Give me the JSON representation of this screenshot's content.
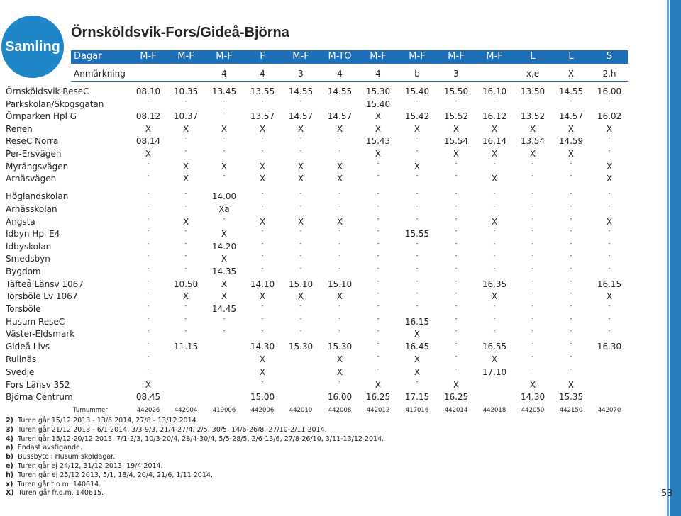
{
  "badge": "Samling",
  "title": "Örnsköldsvik-Fors/Gideå-Björna",
  "page_number": "53",
  "header": {
    "dagar_label": "Dagar",
    "days": [
      "M-F",
      "M-F",
      "M-F",
      "F",
      "M-F",
      "M-TO",
      "M-F",
      "M-F",
      "M-F",
      "M-F",
      "L",
      "L",
      "S"
    ],
    "anm_label": "Anmärkning",
    "remarks": [
      "",
      "",
      "4",
      "4",
      "3",
      "4",
      "4",
      "b",
      "3",
      "",
      "x,e",
      "X",
      "2,h"
    ]
  },
  "stops": [
    {
      "name": "Örnsköldsvik ReseC",
      "v": [
        "08.10",
        "10.35",
        "13.45",
        "13.55",
        "14.55",
        "14.55",
        "15.30",
        "15.40",
        "15.50",
        "16.10",
        "13.50",
        "14.55",
        "16.00"
      ]
    },
    {
      "name": "Parkskolan/Skogsgatan",
      "v": [
        "-",
        "-",
        "-",
        "-",
        "-",
        "-",
        "15.40",
        "-",
        "-",
        "-",
        "-",
        "-",
        "-"
      ]
    },
    {
      "name": "Örnparken Hpl G",
      "v": [
        "08.12",
        "10.37",
        "-",
        "13.57",
        "14.57",
        "14.57",
        "X",
        "15.42",
        "15.52",
        "16.12",
        "13.52",
        "14.57",
        "16.02"
      ]
    },
    {
      "name": "Renen",
      "v": [
        "X",
        "X",
        "X",
        "X",
        "X",
        "X",
        "X",
        "X",
        "X",
        "X",
        "X",
        "X",
        "X"
      ]
    },
    {
      "name": "ReseC Norra",
      "v": [
        "08.14",
        "-",
        "-",
        "-",
        "-",
        "-",
        "15.43",
        "-",
        "15.54",
        "16.14",
        "13.54",
        "14.59",
        "-"
      ]
    },
    {
      "name": "Per-Ersvägen",
      "v": [
        "X",
        "-",
        "-",
        "-",
        "-",
        "-",
        "X",
        "-",
        "X",
        "X",
        "X",
        "X",
        "-"
      ]
    },
    {
      "name": "Myrängsvägen",
      "v": [
        "-",
        "X",
        "X",
        "X",
        "X",
        "X",
        "-",
        "X",
        "-",
        "-",
        "-",
        "-",
        "X"
      ]
    },
    {
      "name": "Arnäsvägen",
      "v": [
        "-",
        "X",
        "-",
        "X",
        "X",
        "X",
        "-",
        "-",
        "-",
        "X",
        "-",
        "-",
        "X"
      ]
    },
    {
      "name": "Höglandskolan",
      "v": [
        "-",
        "-",
        "14.00",
        "-",
        "-",
        "-",
        "-",
        "-",
        "-",
        "-",
        "-",
        "-",
        "-"
      ]
    },
    {
      "name": "Arnässkolan",
      "v": [
        "-",
        "-",
        "Xa",
        "-",
        "-",
        "-",
        "-",
        "-",
        "-",
        "-",
        "-",
        "-",
        "-"
      ]
    },
    {
      "name": "Angsta",
      "v": [
        "-",
        "X",
        "-",
        "X",
        "X",
        "X",
        "-",
        "-",
        "-",
        "X",
        "-",
        "-",
        "X"
      ]
    },
    {
      "name": "Idbyn Hpl E4",
      "v": [
        "-",
        "-",
        "X",
        "-",
        "-",
        "-",
        "-",
        "15.55",
        "-",
        "-",
        "-",
        "-",
        "-"
      ]
    },
    {
      "name": "Idbyskolan",
      "v": [
        "-",
        "-",
        "14.20",
        "-",
        "-",
        "-",
        "-",
        "-",
        "-",
        "-",
        "-",
        "-",
        "-"
      ]
    },
    {
      "name": "Smedsbyn",
      "v": [
        "-",
        "-",
        "X",
        "-",
        "-",
        "-",
        "-",
        "-",
        "-",
        "-",
        "-",
        "-",
        "-"
      ]
    },
    {
      "name": "Bygdom",
      "v": [
        "-",
        "-",
        "14.35",
        "-",
        "-",
        "-",
        "-",
        "-",
        "-",
        "-",
        "-",
        "-",
        "-"
      ]
    },
    {
      "name": "Täfteå Länsv 1067",
      "v": [
        "-",
        "10.50",
        "X",
        "14.10",
        "15.10",
        "15.10",
        "-",
        "-",
        "-",
        "16.35",
        "-",
        "-",
        "16.15"
      ]
    },
    {
      "name": "Torsböle Lv 1067",
      "v": [
        "-",
        "X",
        "X",
        "X",
        "X",
        "X",
        "-",
        "-",
        "-",
        "X",
        "-",
        "-",
        "X"
      ]
    },
    {
      "name": "Torsböle",
      "v": [
        "-",
        "-",
        "14.45",
        "-",
        "-",
        "-",
        "-",
        "-",
        "-",
        "-",
        "-",
        "-",
        "-"
      ]
    },
    {
      "name": "Husum ReseC",
      "v": [
        "-",
        "-",
        "-",
        "-",
        "-",
        "-",
        "-",
        "16.15",
        "-",
        "-",
        "-",
        "-",
        "-"
      ]
    },
    {
      "name": "Väster-Eldsmark",
      "v": [
        "-",
        "-",
        "-",
        "-",
        "-",
        "-",
        "-",
        "X",
        "-",
        "-",
        "-",
        "-",
        "-"
      ]
    },
    {
      "name": "Gideå Livs",
      "v": [
        "-",
        "11.15",
        "",
        "14.30",
        "15.30",
        "15.30",
        "-",
        "16.45",
        "-",
        "16.55",
        "-",
        "-",
        "16.30"
      ]
    },
    {
      "name": "Rullnäs",
      "v": [
        "-",
        "",
        "",
        "X",
        "",
        "X",
        "-",
        "X",
        "-",
        "X",
        "-",
        "-",
        ""
      ]
    },
    {
      "name": "Svedje",
      "v": [
        "-",
        "",
        "",
        "X",
        "",
        "X",
        "-",
        "X",
        "-",
        "17.10",
        "-",
        "-",
        ""
      ]
    },
    {
      "name": "Fors Länsv 352",
      "v": [
        "X",
        "",
        "",
        "-",
        "",
        "-",
        "X",
        "-",
        "X",
        "",
        "X",
        "X",
        ""
      ]
    },
    {
      "name": "Björna Centrum",
      "v": [
        "08.45",
        "",
        "",
        "15.00",
        "",
        "16.00",
        "16.25",
        "17.15",
        "16.25",
        "",
        "14.30",
        "15.35",
        ""
      ]
    }
  ],
  "turnummer_label": "Turnummer",
  "turnummer": [
    "442026",
    "442004",
    "419006",
    "442006",
    "442010",
    "442008",
    "442012",
    "417016",
    "442014",
    "442018",
    "442050",
    "442150",
    "442070"
  ],
  "footnotes": [
    {
      "key": "2)",
      "text": "Turen går 15/12 2013 - 13/6 2014, 27/8 - 13/12 2014."
    },
    {
      "key": "3)",
      "text": "Turen går 21/12 2013 - 6/1 2014, 3/3-9/3, 21/4-27/4, 2/5, 30/5, 14/6-26/8, 27/10-2/11 2014."
    },
    {
      "key": "4)",
      "text": "Turen går 15/12-20/12 2013, 7/1-2/3, 10/3-20/4, 28/4-30/4, 5/5-28/5, 2/6-13/6, 27/8-26/10, 3/11-13/12 2014."
    },
    {
      "key": "a)",
      "text": "Endast avstigande."
    },
    {
      "key": "b)",
      "text": "Bussbyte i Husum skoldagar."
    },
    {
      "key": "e)",
      "text": "Turen går ej 24/12, 31/12 2013, 19/4 2014."
    },
    {
      "key": "h)",
      "text": "Turen går ej 25/12 2013, 5/1, 18/4, 20/4, 21/6, 1/11 2014."
    },
    {
      "key": "x)",
      "text": "Turen går t.o.m. 140614."
    },
    {
      "key": "X)",
      "text": "Turen går fr.o.m. 140615."
    }
  ],
  "colors": {
    "accent": "#1f86c8",
    "header_bar": "#1d6fb8"
  }
}
